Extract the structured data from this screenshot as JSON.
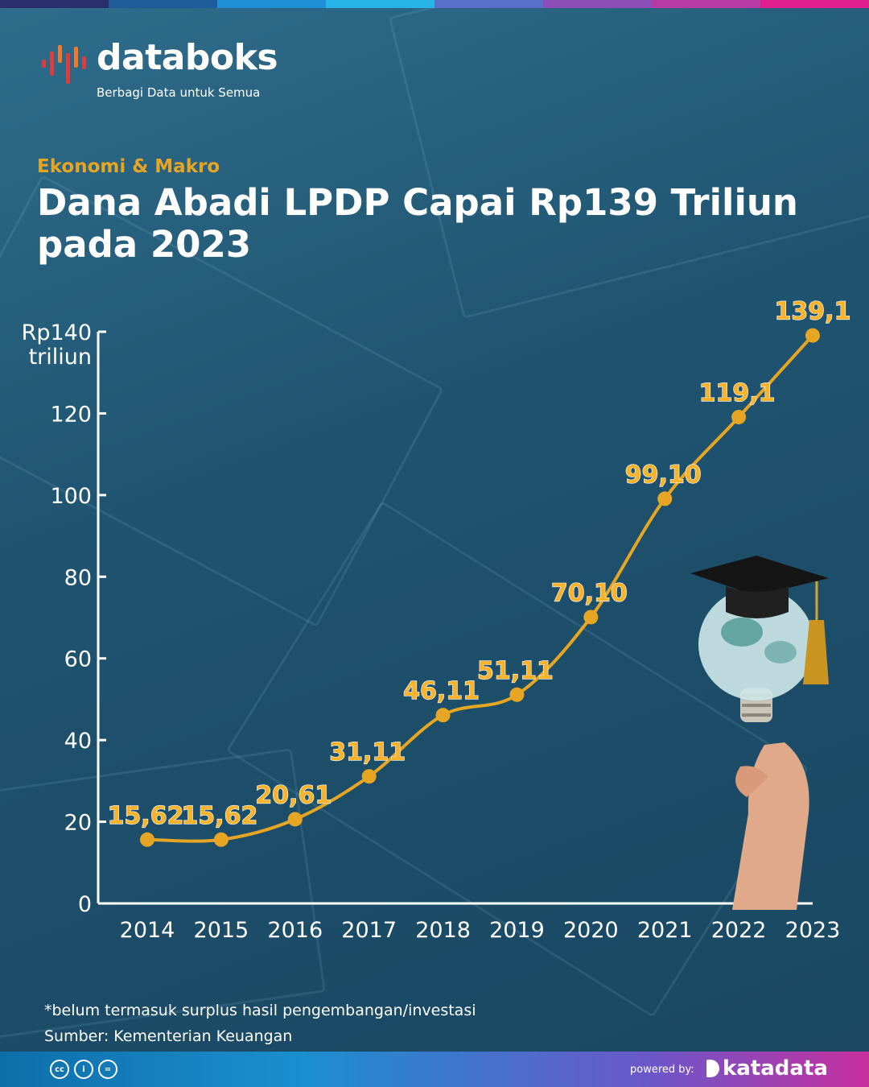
{
  "brand": {
    "name": "databoks",
    "tagline": "Berbagi Data untuk Semua",
    "bar_colors": [
      "#2a2f6b",
      "#1d5b9a",
      "#1f8fd6",
      "#27b5e8",
      "#5a6fc9",
      "#8c4fb8",
      "#b83aa3",
      "#e21f8f"
    ]
  },
  "header": {
    "category": "Ekonomi & Makro",
    "title": "Dana Abadi LPDP Capai Rp139 Triliun pada 2023"
  },
  "chart_data": {
    "type": "line",
    "title": "Dana Abadi LPDP Capai Rp139 Triliun pada 2023",
    "ylabel": "Rp140 triliun",
    "unit_label_line1": "Rp140",
    "unit_label_line2": "triliun",
    "categories": [
      "2014",
      "2015",
      "2016",
      "2017",
      "2018",
      "2019",
      "2020",
      "2021",
      "2022",
      "2023"
    ],
    "values": [
      15.62,
      15.62,
      20.61,
      31.11,
      46.11,
      51.11,
      70.1,
      99.1,
      119.1,
      139.1
    ],
    "data_labels": [
      "15,62",
      "15,62",
      "20,61",
      "31,11",
      "46,11",
      "51,11",
      "70,10",
      "99,10",
      "119,1",
      "139,1"
    ],
    "yticks": [
      0,
      20,
      40,
      60,
      80,
      100,
      120
    ],
    "ylim": [
      0,
      140
    ],
    "line_color": "#e6a623",
    "grid": false
  },
  "footer": {
    "note": "*belum termasuk surplus hasil pengembangan/investasi",
    "source": "Sumber: Kementerian Keuangan",
    "license": [
      "cc",
      "i",
      "="
    ],
    "powered_by": "powered by:",
    "publisher": "katadata"
  }
}
